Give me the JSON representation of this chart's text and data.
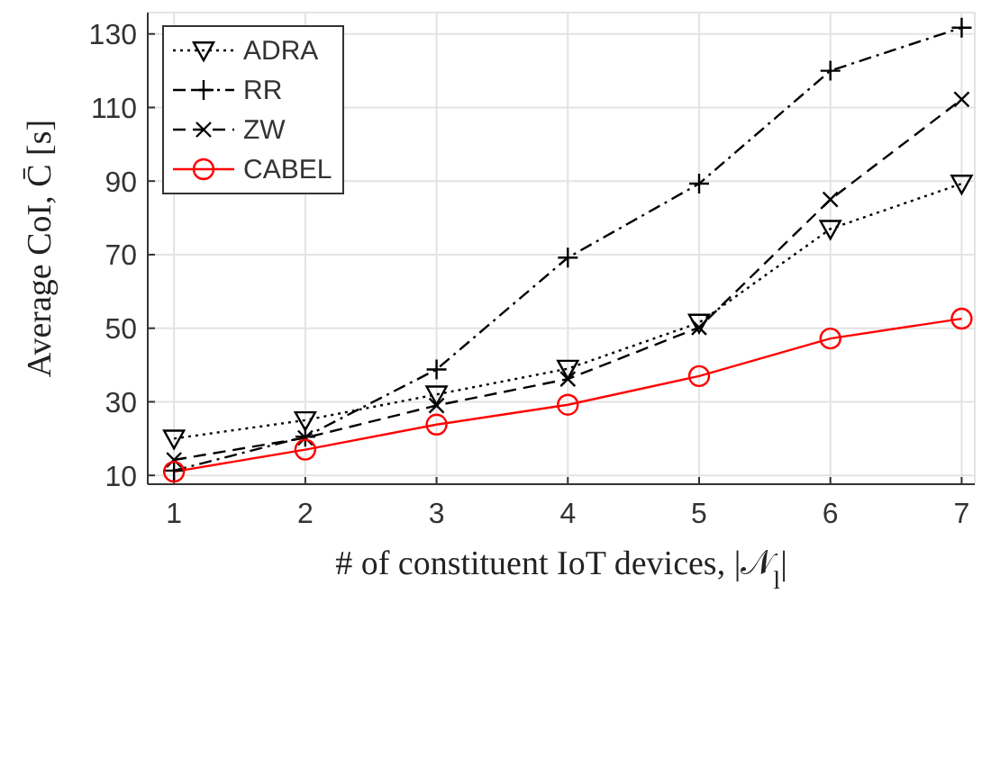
{
  "chart_data": {
    "type": "line",
    "x": [
      1,
      2,
      3,
      4,
      5,
      6,
      7
    ],
    "xlabel": "# of constituent IoT devices, |𝒩$_{l}$|",
    "ylabel": "Average CoI, C̄ [s]",
    "series": [
      {
        "name": "ADRA",
        "color": "#000000",
        "values": [
          20,
          25,
          32,
          39,
          51.5,
          77,
          89.3
        ],
        "line_style": "dotted",
        "marker": "triangle"
      },
      {
        "name": "RR",
        "color": "#000000",
        "values": [
          11.3,
          20.5,
          38.8,
          69.2,
          89.3,
          120,
          131.7
        ],
        "line_style": "dashdot",
        "marker": "plus"
      },
      {
        "name": "ZW",
        "color": "#000000",
        "values": [
          14.2,
          20.2,
          29,
          36.2,
          50.2,
          85,
          112.2
        ],
        "line_style": "dashed",
        "marker": "cross"
      },
      {
        "name": "CABEL",
        "color": "#ff0000",
        "values": [
          11,
          17,
          23.8,
          29.2,
          37,
          47.2,
          52.6
        ],
        "line_style": "solid",
        "marker": "circle"
      }
    ],
    "xlim": [
      0.8,
      7.1
    ],
    "xticks": [
      1,
      2,
      3,
      4,
      5,
      6,
      7
    ],
    "ylim": [
      7.6,
      135.8
    ],
    "yticks": [
      10,
      30,
      50,
      70,
      90,
      110,
      130
    ],
    "grid": true,
    "legend": "top left"
  }
}
